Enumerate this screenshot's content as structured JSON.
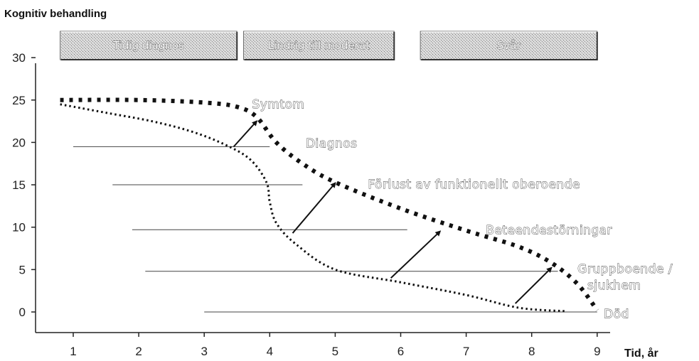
{
  "chart_data": {
    "type": "line",
    "title": "Kognitiv behandling",
    "xlabel": "Tid, år",
    "ylabel": "",
    "xlim": [
      0.5,
      9.6
    ],
    "ylim": [
      -2.5,
      30
    ],
    "x_ticks": [
      "1",
      "2",
      "3",
      "4",
      "5",
      "6",
      "7",
      "8",
      "9"
    ],
    "y_ticks": [
      "0",
      "5",
      "10",
      "15",
      "20",
      "25",
      "30"
    ],
    "phases": [
      {
        "label": "Tidig diagnos",
        "x": [
          0.8,
          3.5
        ]
      },
      {
        "label": "Lindrig till moderat",
        "x": [
          3.6,
          5.9
        ]
      },
      {
        "label": "Svår",
        "x": [
          6.3,
          9.0
        ]
      }
    ],
    "series": [
      {
        "style": "bold-dotted",
        "values": [
          [
            0.8,
            25
          ],
          [
            2,
            25
          ],
          [
            3,
            24.7
          ],
          [
            3.5,
            24.2
          ],
          [
            3.8,
            23
          ],
          [
            4.1,
            20
          ],
          [
            4.5,
            17.5
          ],
          [
            5,
            15.3
          ],
          [
            6,
            12.2
          ],
          [
            7,
            9.6
          ],
          [
            7.8,
            7.7
          ],
          [
            8.3,
            5.8
          ],
          [
            8.7,
            3.3
          ],
          [
            9.0,
            0.2
          ]
        ]
      },
      {
        "style": "fine-dotted",
        "values": [
          [
            0.8,
            24.5
          ],
          [
            1.5,
            23.5
          ],
          [
            2.2,
            22.5
          ],
          [
            2.8,
            21.3
          ],
          [
            3.3,
            19.8
          ],
          [
            3.7,
            18
          ],
          [
            3.95,
            15.3
          ],
          [
            4.0,
            13
          ],
          [
            4.1,
            10.5
          ],
          [
            4.4,
            8
          ],
          [
            5,
            5
          ],
          [
            6,
            3.5
          ],
          [
            7,
            2
          ],
          [
            7.8,
            0.5
          ],
          [
            8.5,
            0.1
          ]
        ]
      }
    ],
    "reference_lines": [
      {
        "y": 19.5,
        "x": [
          1.0,
          4.0
        ]
      },
      {
        "y": 15,
        "x": [
          1.6,
          4.5
        ]
      },
      {
        "y": 9.7,
        "x": [
          1.9,
          6.1
        ]
      },
      {
        "y": 4.8,
        "x": [
          2.1,
          8.4
        ]
      },
      {
        "y": 0,
        "x": [
          3.0,
          9.0
        ]
      }
    ],
    "arrows": [
      {
        "from": [
          3.45,
          19.5
        ],
        "to": [
          3.8,
          22.5
        ]
      },
      {
        "from": [
          4.35,
          9.3
        ],
        "to": [
          5.0,
          15.2
        ]
      },
      {
        "from": [
          5.85,
          4.0
        ],
        "to": [
          6.6,
          9.5
        ]
      },
      {
        "from": [
          7.75,
          1.0
        ],
        "to": [
          8.3,
          5.2
        ]
      }
    ],
    "annotations": [
      {
        "text": "Symtom",
        "x": 3.73,
        "y": 24.5
      },
      {
        "text": "Diagnos",
        "x": 4.55,
        "y": 19.9
      },
      {
        "text": "Förlust av funktionellt oberoende",
        "x": 5.5,
        "y": 15.1
      },
      {
        "text": "Beteendestörningar",
        "x": 7.3,
        "y": 9.7
      },
      {
        "text": "Gruppboende /",
        "x": 8.7,
        "y": 5.1
      },
      {
        "text": "sjukhem",
        "x": 8.85,
        "y": 3.2
      },
      {
        "text": "Död",
        "x": 9.1,
        "y": -0.2
      }
    ],
    "grid": false,
    "legend": "none"
  }
}
